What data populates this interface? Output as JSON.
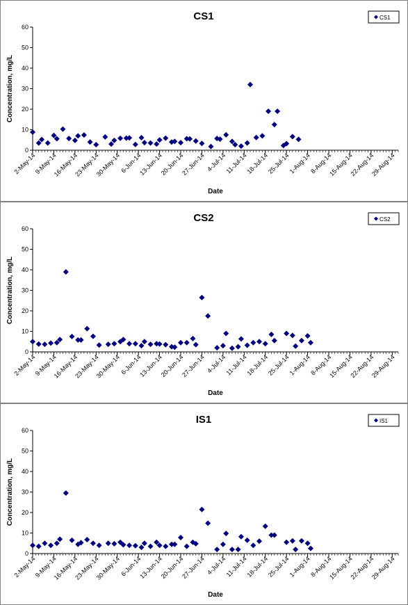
{
  "colors": {
    "marker": "#00007f",
    "axis": "#000000",
    "panel_border": "#808080",
    "background": "#ffffff"
  },
  "chart_data": [
    {
      "type": "scatter",
      "title": "CS1",
      "xlabel": "Date",
      "ylabel": "Concentration, mg/L",
      "xlim": [
        "2014-05-02",
        "2014-08-31"
      ],
      "ylim": [
        0,
        60
      ],
      "yticks": [
        0,
        10,
        20,
        30,
        40,
        50,
        60
      ],
      "xtick_labels": [
        "2-May-14",
        "9-May-14",
        "16-May-14",
        "23-May-14",
        "30-May-14",
        "6-Jun-14",
        "13-Jun-14",
        "20-Jun-14",
        "27-Jun-14",
        "4-Jul-14",
        "11-Jul-14",
        "18-Jul-14",
        "25-Jul-14",
        "1-Aug-14",
        "8-Aug-14",
        "15-Aug-14",
        "22-Aug-14",
        "29-Aug-14"
      ],
      "grid": false,
      "legend_position": "top-right",
      "marker": "diamond",
      "series": [
        {
          "name": "CS1",
          "points": [
            [
              "2014-05-02",
              8.8
            ],
            [
              "2014-05-04",
              3.5
            ],
            [
              "2014-05-05",
              5.2
            ],
            [
              "2014-05-07",
              3.5
            ],
            [
              "2014-05-09",
              7.2
            ],
            [
              "2014-05-10",
              5.6
            ],
            [
              "2014-05-12",
              10.3
            ],
            [
              "2014-05-14",
              5.7
            ],
            [
              "2014-05-16",
              4.8
            ],
            [
              "2014-05-17",
              7.0
            ],
            [
              "2014-05-19",
              7.4
            ],
            [
              "2014-05-21",
              4.0
            ],
            [
              "2014-05-23",
              2.7
            ],
            [
              "2014-05-26",
              6.5
            ],
            [
              "2014-05-28",
              3.0
            ],
            [
              "2014-05-29",
              4.8
            ],
            [
              "2014-05-31",
              5.8
            ],
            [
              "2014-06-02",
              5.9
            ],
            [
              "2014-06-03",
              6.0
            ],
            [
              "2014-06-05",
              2.8
            ],
            [
              "2014-06-07",
              6.1
            ],
            [
              "2014-06-08",
              3.7
            ],
            [
              "2014-06-10",
              3.5
            ],
            [
              "2014-06-12",
              3.0
            ],
            [
              "2014-06-13",
              5.0
            ],
            [
              "2014-06-15",
              5.9
            ],
            [
              "2014-06-17",
              4.0
            ],
            [
              "2014-06-18",
              4.3
            ],
            [
              "2014-06-20",
              3.7
            ],
            [
              "2014-06-22",
              5.6
            ],
            [
              "2014-06-23",
              5.5
            ],
            [
              "2014-06-25",
              4.5
            ],
            [
              "2014-06-27",
              3.3
            ],
            [
              "2014-06-30",
              1.8
            ],
            [
              "2014-07-02",
              5.7
            ],
            [
              "2014-07-03",
              5.4
            ],
            [
              "2014-07-05",
              7.5
            ],
            [
              "2014-07-07",
              4.3
            ],
            [
              "2014-07-08",
              2.7
            ],
            [
              "2014-07-10",
              2.0
            ],
            [
              "2014-07-12",
              3.5
            ],
            [
              "2014-07-13",
              32.0
            ],
            [
              "2014-07-15",
              6.2
            ],
            [
              "2014-07-17",
              7.0
            ],
            [
              "2014-07-19",
              19.0
            ],
            [
              "2014-07-21",
              12.5
            ],
            [
              "2014-07-22",
              19.0
            ],
            [
              "2014-07-24",
              2.3
            ],
            [
              "2014-07-25",
              3.2
            ],
            [
              "2014-07-27",
              6.6
            ],
            [
              "2014-07-29",
              5.3
            ]
          ]
        }
      ]
    },
    {
      "type": "scatter",
      "title": "CS2",
      "xlabel": "Date",
      "ylabel": "Concentration, mg/L",
      "xlim": [
        "2014-05-02",
        "2014-08-31"
      ],
      "ylim": [
        0,
        60
      ],
      "yticks": [
        0,
        10,
        20,
        30,
        40,
        50,
        60
      ],
      "xtick_labels": [
        "2-May-14",
        "9-May-14",
        "16-May-14",
        "23-May-14",
        "30-May-14",
        "6-Jun-14",
        "13-Jun-14",
        "20-Jun-14",
        "27-Jun-14",
        "4-Jul-14",
        "11-Jul-14",
        "18-Jul-14",
        "25-Jul-14",
        "1-Aug-14",
        "8-Aug-14",
        "15-Aug-14",
        "22-Aug-14",
        "29-Aug-14"
      ],
      "grid": false,
      "legend_position": "top-right",
      "marker": "diamond",
      "series": [
        {
          "name": "CS2",
          "points": [
            [
              "2014-05-02",
              5.0
            ],
            [
              "2014-05-04",
              3.8
            ],
            [
              "2014-05-06",
              3.7
            ],
            [
              "2014-05-08",
              4.3
            ],
            [
              "2014-05-10",
              4.5
            ],
            [
              "2014-05-11",
              6.0
            ],
            [
              "2014-05-13",
              39.0
            ],
            [
              "2014-05-15",
              7.5
            ],
            [
              "2014-05-17",
              5.8
            ],
            [
              "2014-05-18",
              5.8
            ],
            [
              "2014-05-20",
              11.3
            ],
            [
              "2014-05-22",
              7.6
            ],
            [
              "2014-05-24",
              3.3
            ],
            [
              "2014-05-27",
              3.7
            ],
            [
              "2014-05-29",
              4.0
            ],
            [
              "2014-05-31",
              5.0
            ],
            [
              "2014-06-01",
              6.0
            ],
            [
              "2014-06-03",
              4.0
            ],
            [
              "2014-06-05",
              4.0
            ],
            [
              "2014-06-07",
              3.0
            ],
            [
              "2014-06-08",
              5.0
            ],
            [
              "2014-06-10",
              3.7
            ],
            [
              "2014-06-12",
              4.0
            ],
            [
              "2014-06-13",
              3.8
            ],
            [
              "2014-06-15",
              3.5
            ],
            [
              "2014-06-17",
              2.5
            ],
            [
              "2014-06-18",
              2.3
            ],
            [
              "2014-06-20",
              4.5
            ],
            [
              "2014-06-22",
              4.5
            ],
            [
              "2014-06-24",
              6.5
            ],
            [
              "2014-06-25",
              3.5
            ],
            [
              "2014-06-27",
              26.5
            ],
            [
              "2014-06-29",
              17.5
            ],
            [
              "2014-07-02",
              2.0
            ],
            [
              "2014-07-04",
              3.0
            ],
            [
              "2014-07-05",
              9.0
            ],
            [
              "2014-07-07",
              1.8
            ],
            [
              "2014-07-09",
              2.5
            ],
            [
              "2014-07-10",
              6.3
            ],
            [
              "2014-07-12",
              3.2
            ],
            [
              "2014-07-14",
              4.5
            ],
            [
              "2014-07-16",
              5.0
            ],
            [
              "2014-07-18",
              4.0
            ],
            [
              "2014-07-20",
              8.5
            ],
            [
              "2014-07-21",
              5.5
            ],
            [
              "2014-07-25",
              9.0
            ],
            [
              "2014-07-27",
              8.0
            ],
            [
              "2014-07-28",
              2.8
            ],
            [
              "2014-07-30",
              5.5
            ],
            [
              "2014-08-01",
              7.8
            ],
            [
              "2014-08-02",
              4.5
            ]
          ]
        }
      ]
    },
    {
      "type": "scatter",
      "title": "IS1",
      "xlabel": "Date",
      "ylabel": "Concentration, mg/L",
      "xlim": [
        "2014-05-02",
        "2014-08-31"
      ],
      "ylim": [
        0,
        60
      ],
      "yticks": [
        0,
        10,
        20,
        30,
        40,
        50,
        60
      ],
      "xtick_labels": [
        "2-May-14",
        "9-May-14",
        "16-May-14",
        "23-May-14",
        "30-May-14",
        "6-Jun-14",
        "13-Jun-14",
        "20-Jun-14",
        "27-Jun-14",
        "4-Jul-14",
        "11-Jul-14",
        "18-Jul-14",
        "25-Jul-14",
        "1-Aug-14",
        "8-Aug-14",
        "15-Aug-14",
        "22-Aug-14",
        "29-Aug-14"
      ],
      "grid": false,
      "legend_position": "top-right",
      "marker": "diamond",
      "series": [
        {
          "name": "IS1",
          "points": [
            [
              "2014-05-02",
              4.0
            ],
            [
              "2014-05-04",
              3.5
            ],
            [
              "2014-05-06",
              5.0
            ],
            [
              "2014-05-08",
              4.0
            ],
            [
              "2014-05-10",
              5.0
            ],
            [
              "2014-05-11",
              7.0
            ],
            [
              "2014-05-13",
              29.5
            ],
            [
              "2014-05-15",
              6.5
            ],
            [
              "2014-05-17",
              4.5
            ],
            [
              "2014-05-18",
              5.3
            ],
            [
              "2014-05-20",
              6.8
            ],
            [
              "2014-05-22",
              5.0
            ],
            [
              "2014-05-24",
              4.0
            ],
            [
              "2014-05-27",
              5.0
            ],
            [
              "2014-05-29",
              4.8
            ],
            [
              "2014-05-31",
              5.5
            ],
            [
              "2014-06-01",
              4.3
            ],
            [
              "2014-06-03",
              4.0
            ],
            [
              "2014-06-05",
              3.8
            ],
            [
              "2014-06-07",
              3.0
            ],
            [
              "2014-06-08",
              5.0
            ],
            [
              "2014-06-10",
              3.5
            ],
            [
              "2014-06-12",
              5.5
            ],
            [
              "2014-06-13",
              4.0
            ],
            [
              "2014-06-15",
              3.5
            ],
            [
              "2014-06-17",
              4.5
            ],
            [
              "2014-06-18",
              4.5
            ],
            [
              "2014-06-20",
              7.8
            ],
            [
              "2014-06-22",
              3.5
            ],
            [
              "2014-06-24",
              5.5
            ],
            [
              "2014-06-25",
              4.8
            ],
            [
              "2014-06-27",
              21.5
            ],
            [
              "2014-06-29",
              14.8
            ],
            [
              "2014-07-02",
              2.0
            ],
            [
              "2014-07-04",
              4.5
            ],
            [
              "2014-07-05",
              9.8
            ],
            [
              "2014-07-07",
              2.0
            ],
            [
              "2014-07-09",
              2.0
            ],
            [
              "2014-07-10",
              8.2
            ],
            [
              "2014-07-12",
              6.5
            ],
            [
              "2014-07-14",
              4.0
            ],
            [
              "2014-07-16",
              6.0
            ],
            [
              "2014-07-18",
              13.3
            ],
            [
              "2014-07-20",
              9.0
            ],
            [
              "2014-07-21",
              9.0
            ],
            [
              "2014-07-25",
              5.5
            ],
            [
              "2014-07-27",
              6.2
            ],
            [
              "2014-07-28",
              2.0
            ],
            [
              "2014-07-30",
              6.2
            ],
            [
              "2014-08-01",
              5.0
            ],
            [
              "2014-08-02",
              2.5
            ]
          ]
        }
      ]
    }
  ]
}
